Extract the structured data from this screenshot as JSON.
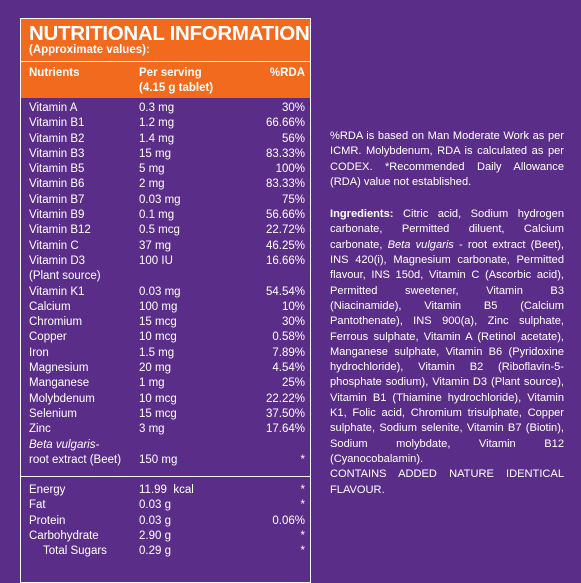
{
  "header": {
    "title": "NUTRITIONAL INFORMATION",
    "subtitle": "(Approximate values):"
  },
  "columns": {
    "nutrients": "Nutrients",
    "serving": "Per serving",
    "serving_note": "(4.15 g tablet)",
    "rda": "%RDA"
  },
  "rows": [
    {
      "name": "Vitamin A",
      "amount": "0.3 mg",
      "rda": "30%"
    },
    {
      "name": "Vitamin B1",
      "amount": "1.2 mg",
      "rda": "66.66%"
    },
    {
      "name": "Vitamin B2",
      "amount": "1.4 mg",
      "rda": "56%"
    },
    {
      "name": "Vitamin B3",
      "amount": "15 mg",
      "rda": "83.33%"
    },
    {
      "name": "Vitamin B5",
      "amount": "5 mg",
      "rda": "100%"
    },
    {
      "name": "Vitamin B6",
      "amount": "2 mg",
      "rda": "83.33%"
    },
    {
      "name": "Vitamin B7",
      "amount": "0.03 mg",
      "rda": "75%"
    },
    {
      "name": "Vitamin B9",
      "amount": "0.1 mg",
      "rda": "56.66%"
    },
    {
      "name": "Vitamin B12",
      "amount": "0.5 mcg",
      "rda": "22.72%"
    },
    {
      "name": "Vitamin C",
      "amount": "37 mg",
      "rda": "46.25%"
    },
    {
      "name": "Vitamin D3",
      "amount": "100 IU",
      "rda": "16.66%",
      "note": "(Plant source)"
    },
    {
      "name": "Vitamin K1",
      "amount": "0.03 mg",
      "rda": "54.54%"
    },
    {
      "name": "Calcium",
      "amount": "100 mg",
      "rda": "10%"
    },
    {
      "name": "Chromium",
      "amount": "15 mcg",
      "rda": "30%"
    },
    {
      "name": "Copper",
      "amount": "10 mcg",
      "rda": "0.58%"
    },
    {
      "name": "Iron",
      "amount": "1.5 mg",
      "rda": "7.89%"
    },
    {
      "name": "Magnesium",
      "amount": "20 mg",
      "rda": "4.54%"
    },
    {
      "name": "Manganese",
      "amount": "1 mg",
      "rda": "25%"
    },
    {
      "name": "Molybdenum",
      "amount": "10 mcg",
      "rda": "22.22%"
    },
    {
      "name": "Selenium",
      "amount": "15 mcg",
      "rda": "37.50%"
    },
    {
      "name": "Zinc",
      "amount": "3 mg",
      "rda": "17.64%"
    },
    {
      "name_italic": "Beta vulgaris-",
      "name": "root extract (Beet)",
      "amount": "150 mg",
      "rda": "*"
    }
  ],
  "energy_rows": [
    {
      "name": "Energy",
      "amount": "11.99  kcal",
      "rda": "*"
    },
    {
      "name": "Fat",
      "amount": "0.03 g",
      "rda": "*"
    },
    {
      "name": "Protein",
      "amount": "0.03 g",
      "rda": "0.06%"
    },
    {
      "name": "Carbohydrate",
      "amount": "2.90 g",
      "rda": "*"
    },
    {
      "name": "Total Sugars",
      "amount": "0.29 g",
      "rda": "*",
      "indent": true
    }
  ],
  "rda_note": "%RDA is based on Man Moderate Work as per ICMR. Molybdenum, RDA is calculated as per CODEX. *Recommended Daily Allowance (RDA) value not established.",
  "ingredients": {
    "label": "Ingredients:",
    "before": " Citric acid, Sodium hydrogen carbonate, Permitted diluent, Calcium carbonate, ",
    "italic": "Beta vulgaris",
    "after": " - root extract (Beet), INS 420(i), Magnesium carbonate, Permitted flavour, INS 150d, Vitamin C (Ascorbic acid), Permitted sweetener, Vitamin B3 (Niacinamide), Vitamin B5 (Calcium Pantothenate), INS 900(a), Zinc sulphate, Ferrous sulphate, Vitamin A (Retinol acetate), Manganese sulphate, Vitamin B6 (Pyridoxine hydrochloride), Vitamin B2 (Riboflavin-5-phosphate sodium), Vitamin D3 (Plant source), Vitamin B1 (Thiamine hydrochloride), Vitamin K1, Folic acid, Chromium trisulphate, Copper sulphate, Sodium selenite, Vitamin B7 (Biotin), Sodium molybdate, Vitamin B12 (Cyanocobalamin).",
    "flavour": "CONTAINS ADDED NATURE IDENTICAL FLAVOUR."
  }
}
